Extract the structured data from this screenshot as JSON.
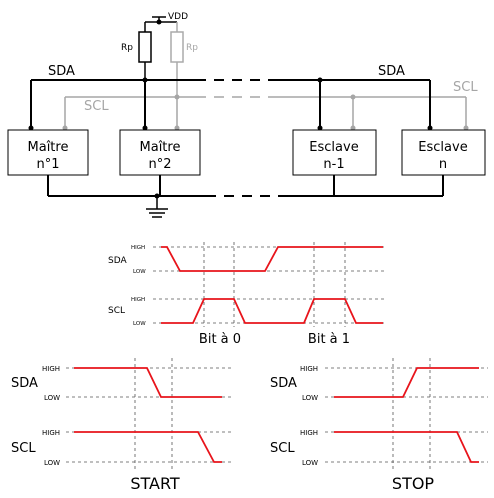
{
  "bus": {
    "vdd": "VDD",
    "rp_left": "Rp",
    "rp_right": "Rp",
    "sda_left": "SDA",
    "sda_right": "SDA",
    "scl_left": "SCL",
    "scl_right": "SCL",
    "devices": [
      {
        "line1": "Maître",
        "line2": "n°1"
      },
      {
        "line1": "Maître",
        "line2": "n°2"
      },
      {
        "line1": "Esclave",
        "line2": "n-1"
      },
      {
        "line1": "Esclave",
        "line2": "n"
      }
    ]
  },
  "bits": {
    "sda": "SDA",
    "scl": "SCL",
    "high": "HIGH",
    "low": "LOW",
    "bit0": "Bit à 0",
    "bit1": "Bit à 1"
  },
  "start": {
    "sda": "SDA",
    "scl": "SCL",
    "high": "HIGH",
    "low": "LOW",
    "title": "START"
  },
  "stop": {
    "sda": "SDA",
    "scl": "SCL",
    "high": "HIGH",
    "low": "LOW",
    "title": "STOP"
  },
  "colors": {
    "wire": "#000000",
    "scl_wire": "#a6a6a6",
    "signal": "#e8141b",
    "dash": "#555555"
  }
}
